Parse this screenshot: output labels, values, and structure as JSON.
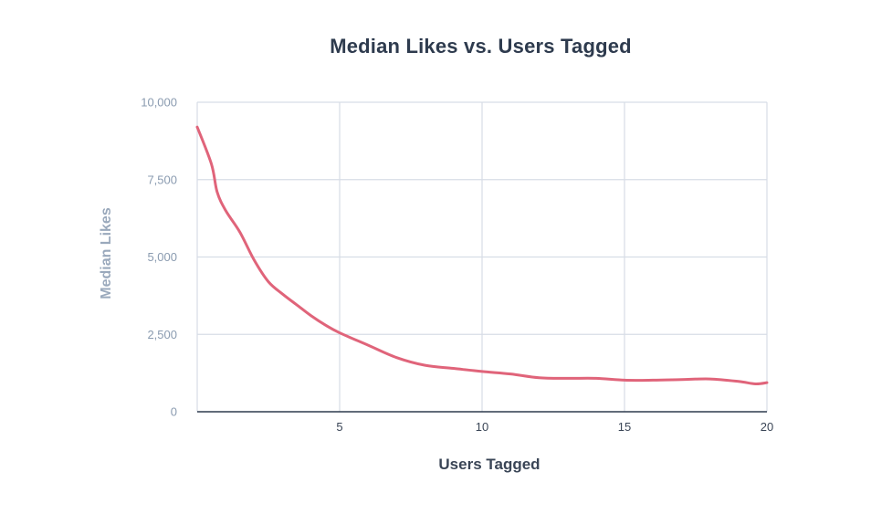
{
  "chart_data": {
    "type": "line",
    "title": "Median Likes vs. Users Tagged",
    "xlabel": "Users Tagged",
    "ylabel": "Median Likes",
    "xlim": [
      0,
      20
    ],
    "ylim": [
      0,
      10000
    ],
    "x_ticks": [
      5,
      10,
      15,
      20
    ],
    "x_tick_labels": [
      "5",
      "10",
      "15",
      "20"
    ],
    "y_ticks": [
      0,
      2500,
      5000,
      7500,
      10000
    ],
    "y_tick_labels": [
      "0",
      "2,500",
      "5,000",
      "7,500",
      "10,000"
    ],
    "grid": true,
    "legend": "none",
    "series_color": "#e0647a",
    "series": [
      {
        "x": [
          0,
          0.5,
          0.7,
          1,
          1.5,
          2,
          2.5,
          3,
          3.5,
          4,
          4.5,
          5,
          6,
          7,
          8,
          9,
          10,
          11,
          12,
          13,
          14,
          15,
          16,
          17,
          18,
          19,
          19.6,
          20
        ],
        "values": [
          9200,
          8000,
          7100,
          6500,
          5800,
          4900,
          4200,
          3800,
          3450,
          3100,
          2800,
          2550,
          2150,
          1750,
          1500,
          1400,
          1300,
          1220,
          1100,
          1080,
          1080,
          1020,
          1020,
          1040,
          1060,
          980,
          900,
          940
        ]
      }
    ]
  }
}
